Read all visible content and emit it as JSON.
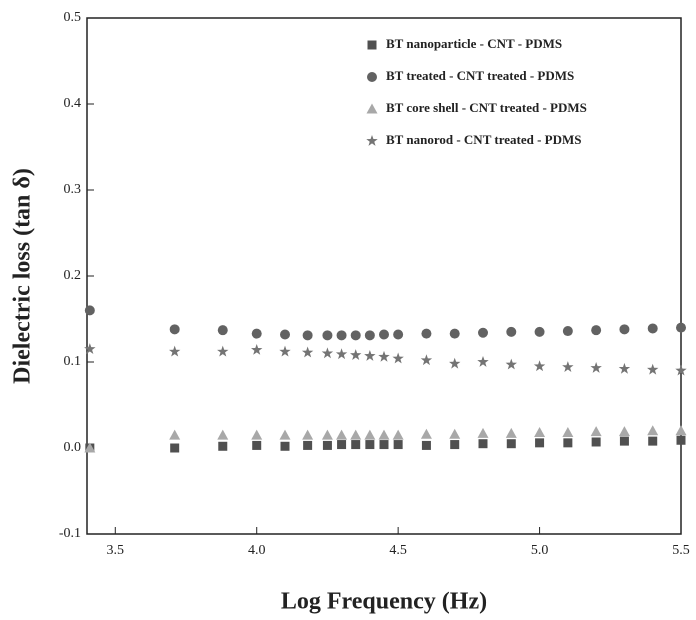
{
  "chart_data": {
    "type": "scatter",
    "xlabel": "Log  Frequency (Hz)",
    "ylabel": "Dielectric loss (tan δ)",
    "x": [
      3.41,
      3.71,
      3.88,
      4.0,
      4.1,
      4.18,
      4.25,
      4.3,
      4.35,
      4.4,
      4.45,
      4.5,
      4.6,
      4.7,
      4.8,
      4.9,
      5.0,
      5.1,
      5.2,
      5.3,
      5.4,
      5.5
    ],
    "series": [
      {
        "name": "BT nanoparticle - CNT - PDMS",
        "color": "#505050",
        "marker": "square",
        "values": [
          0.0,
          0.0,
          0.002,
          0.003,
          0.002,
          0.003,
          0.003,
          0.004,
          0.004,
          0.004,
          0.004,
          0.004,
          0.003,
          0.004,
          0.005,
          0.005,
          0.006,
          0.006,
          0.007,
          0.008,
          0.008,
          0.009
        ]
      },
      {
        "name": "BT treated - CNT treated - PDMS",
        "color": "#626262",
        "marker": "circle",
        "values": [
          0.16,
          0.138,
          0.137,
          0.133,
          0.132,
          0.131,
          0.131,
          0.131,
          0.131,
          0.131,
          0.132,
          0.132,
          0.133,
          0.133,
          0.134,
          0.135,
          0.135,
          0.136,
          0.137,
          0.138,
          0.139,
          0.14
        ]
      },
      {
        "name": "BT core shell - CNT treated - PDMS",
        "color": "#a8a8a8",
        "marker": "triangle",
        "values": [
          0.0,
          0.015,
          0.015,
          0.015,
          0.015,
          0.015,
          0.015,
          0.015,
          0.015,
          0.015,
          0.015,
          0.015,
          0.016,
          0.016,
          0.017,
          0.017,
          0.018,
          0.018,
          0.019,
          0.019,
          0.02,
          0.02
        ]
      },
      {
        "name": "BT nanorod - CNT treated - PDMS",
        "color": "#747474",
        "marker": "star",
        "values": [
          0.115,
          0.112,
          0.112,
          0.114,
          0.112,
          0.111,
          0.11,
          0.109,
          0.108,
          0.107,
          0.106,
          0.104,
          0.102,
          0.098,
          0.1,
          0.097,
          0.095,
          0.094,
          0.093,
          0.092,
          0.091,
          0.09
        ]
      }
    ],
    "xlim": [
      3.4,
      5.5
    ],
    "xticks": [
      3.5,
      {
        "value": 4,
        "label": "4.0"
      },
      4.5,
      {
        "value": 5,
        "label": "5.0"
      },
      5.5
    ],
    "ylim": [
      -0.1,
      0.5
    ],
    "yticks": [
      -0.1,
      {
        "value": 0,
        "label": "0.0"
      },
      0.1,
      0.2,
      0.3,
      0.4,
      0.5
    ],
    "legend": "upper right"
  }
}
